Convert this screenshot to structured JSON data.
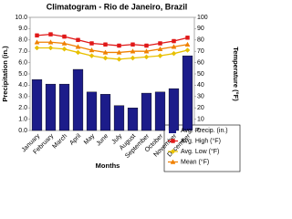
{
  "chart_data": {
    "type": "combo",
    "title": "Climatogram - Rio de Janeiro, Brazil",
    "x_label": "Months",
    "y_label": "Precipitation (in.)",
    "y2_label": "Temperature (°F)",
    "categories": [
      "January",
      "February",
      "March",
      "April",
      "May",
      "June",
      "July",
      "August",
      "September",
      "October",
      "November",
      "December"
    ],
    "series": [
      {
        "name": "Avg. Precip. (in.)",
        "type": "bar",
        "color": "#1c1c8a",
        "values": [
          4.5,
          4.1,
          4.1,
          5.4,
          3.4,
          3.2,
          2.2,
          2.0,
          3.3,
          3.4,
          3.7,
          6.6
        ]
      },
      {
        "name": "Avg. High (°F)",
        "type": "line",
        "axis": "y2",
        "color": "#e01818",
        "marker": "square",
        "values": [
          84,
          85,
          83,
          80,
          77,
          76,
          75,
          76,
          75,
          77,
          79,
          82
        ]
      },
      {
        "name": "Avg. Low (°F)",
        "type": "line",
        "axis": "y2",
        "color": "#e8c000",
        "marker": "diamond",
        "values": [
          73,
          73,
          72,
          69,
          66,
          64,
          63,
          64,
          65,
          66,
          68,
          71
        ]
      },
      {
        "name": "Mean (°F)",
        "type": "line",
        "axis": "y2",
        "color": "#f08000",
        "marker": "triangle",
        "values": [
          78,
          78,
          77,
          74,
          71,
          69,
          69,
          70,
          70,
          72,
          74,
          76
        ]
      }
    ],
    "ylim": [
      0,
      10
    ],
    "yticks": [
      {
        "value": 0,
        "label": "0.0"
      },
      {
        "value": 1,
        "label": "1.0"
      },
      {
        "value": 2,
        "label": "2.0"
      },
      {
        "value": 3,
        "label": "3.0"
      },
      {
        "value": 4,
        "label": "4.0"
      },
      {
        "value": 5,
        "label": "5.0"
      },
      {
        "value": 6,
        "label": "6.0"
      },
      {
        "value": 7,
        "label": "7.0"
      },
      {
        "value": 8,
        "label": "8.0"
      },
      {
        "value": 9,
        "label": "9.0"
      },
      {
        "value": 10,
        "label": "10.0"
      }
    ],
    "y2lim": [
      0,
      100
    ],
    "y2ticks": [
      0,
      10,
      20,
      30,
      40,
      50,
      60,
      70,
      80,
      90,
      100
    ]
  }
}
